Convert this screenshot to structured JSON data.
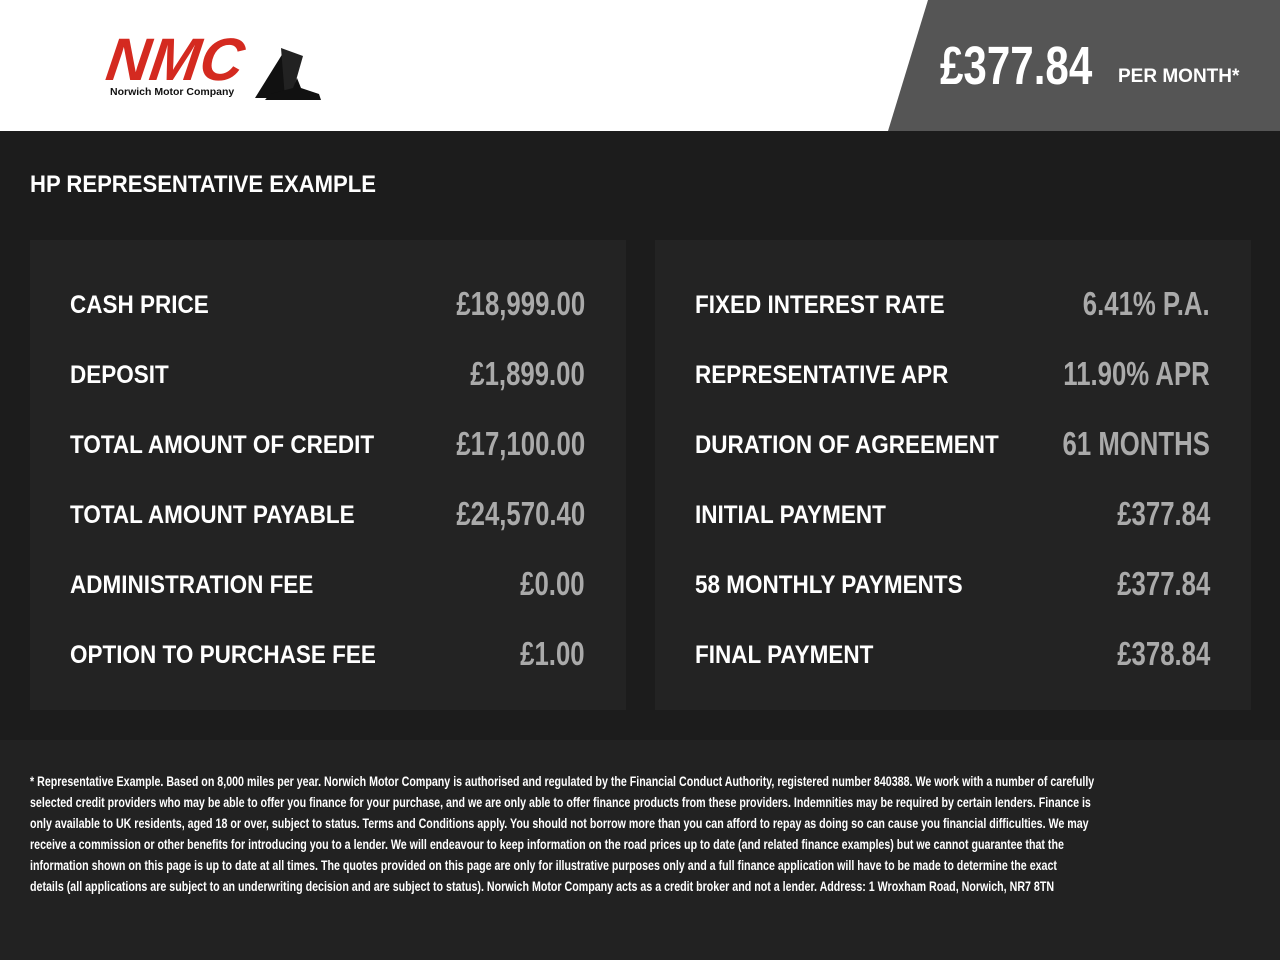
{
  "header": {
    "logo_text": "NMC",
    "logo_subtext": "Norwich Motor Company",
    "price": "£377.84",
    "price_suffix": "PER MONTH*"
  },
  "title": "HP REPRESENTATIVE EXAMPLE",
  "left": [
    {
      "label": "CASH PRICE",
      "value": "£18,999.00"
    },
    {
      "label": "DEPOSIT",
      "value": "£1,899.00"
    },
    {
      "label": "TOTAL AMOUNT OF CREDIT",
      "value": "£17,100.00"
    },
    {
      "label": "TOTAL AMOUNT PAYABLE",
      "value": "£24,570.40"
    },
    {
      "label": "ADMINISTRATION FEE",
      "value": "£0.00"
    },
    {
      "label": "OPTION TO PURCHASE FEE",
      "value": "£1.00"
    }
  ],
  "right": [
    {
      "label": "FIXED INTEREST RATE",
      "value": "6.41% P.A."
    },
    {
      "label": "REPRESENTATIVE APR",
      "value": "11.90% APR"
    },
    {
      "label": "DURATION OF AGREEMENT",
      "value": "61 MONTHS"
    },
    {
      "label": "INITIAL PAYMENT",
      "value": "£377.84"
    },
    {
      "label": "58 MONTHLY PAYMENTS",
      "value": "£377.84"
    },
    {
      "label": "FINAL PAYMENT",
      "value": "£378.84"
    }
  ],
  "footer": {
    "lines": [
      "* Representative Example. Based on 8,000 miles per year. Norwich Motor Company is authorised and regulated by the Financial Conduct Authority, registered number 840388. We work with a number of carefully",
      "selected credit providers who may be able to offer you finance for your purchase, and we are only able to offer finance products from these providers. Indemnities may be required by certain lenders. Finance is",
      "only available to UK residents, aged 18 or over, subject to status. Terms and Conditions apply. You should not borrow more than you can afford to repay as doing so can cause you financial difficulties. We may",
      "receive a commission or other benefits for introducing you to a lender. We will endeavour to keep information on the road prices up to date (and related finance examples) but we cannot guarantee that the",
      "information shown on this page is up to date at all times. The quotes provided on this page are only for illustrative purposes only and a full finance application will have to be made to determine the exact",
      "details (all applications are subject to an underwriting decision and are subject to status). Norwich Motor Company acts as a credit broker and not a lender. Address: 1 Wroxham Road, Norwich, NR7 8TN"
    ]
  },
  "colors": {
    "brand_red": "#d42a20",
    "price_bar": "#555555",
    "panel": "#232323",
    "value_text": "#aaaaaa"
  }
}
